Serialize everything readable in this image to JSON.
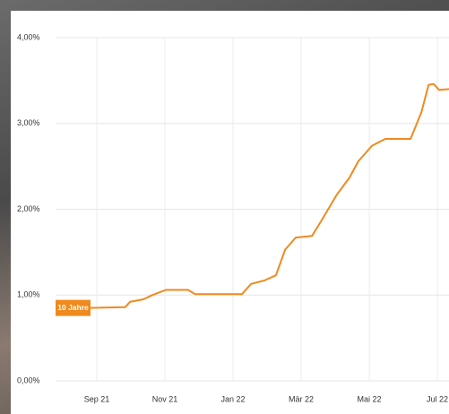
{
  "chart_data": {
    "type": "line",
    "series": [
      {
        "name": "10 Jahre",
        "color": "#f08a1e",
        "x": [
          -0.21,
          0.84,
          0.97,
          1.37,
          1.63,
          2.03,
          2.68,
          2.89,
          4.26,
          4.53,
          4.92,
          5.26,
          5.53,
          5.84,
          6.32,
          6.63,
          7.03,
          7.42,
          7.68,
          8.08,
          8.47,
          9.21,
          9.53,
          9.74,
          9.89,
          10.05,
          10.34
        ],
        "values": [
          0.85,
          0.86,
          0.92,
          0.95,
          1.0,
          1.06,
          1.06,
          1.01,
          1.01,
          1.13,
          1.17,
          1.23,
          1.53,
          1.67,
          1.69,
          1.89,
          2.16,
          2.37,
          2.56,
          2.74,
          2.82,
          2.82,
          3.13,
          3.45,
          3.46,
          3.39,
          3.4
        ]
      }
    ],
    "xlim": [
      -1.21,
      10.34
    ],
    "xticks": [
      {
        "value": 0,
        "label": "Sep 21"
      },
      {
        "value": 2,
        "label": "Nov 21"
      },
      {
        "value": 4,
        "label": "Jan 22"
      },
      {
        "value": 6,
        "label": "Mär 22"
      },
      {
        "value": 8,
        "label": "Mai 22"
      },
      {
        "value": 10,
        "label": "Jul 22"
      }
    ],
    "ylim": [
      0,
      4
    ],
    "yticks": [
      {
        "value": 0,
        "label": "0,00%"
      },
      {
        "value": 1,
        "label": "1,00%"
      },
      {
        "value": 2,
        "label": "2,00%"
      },
      {
        "value": 3,
        "label": "3,00%"
      },
      {
        "value": 4,
        "label": "4,00%"
      }
    ],
    "grid": true
  }
}
